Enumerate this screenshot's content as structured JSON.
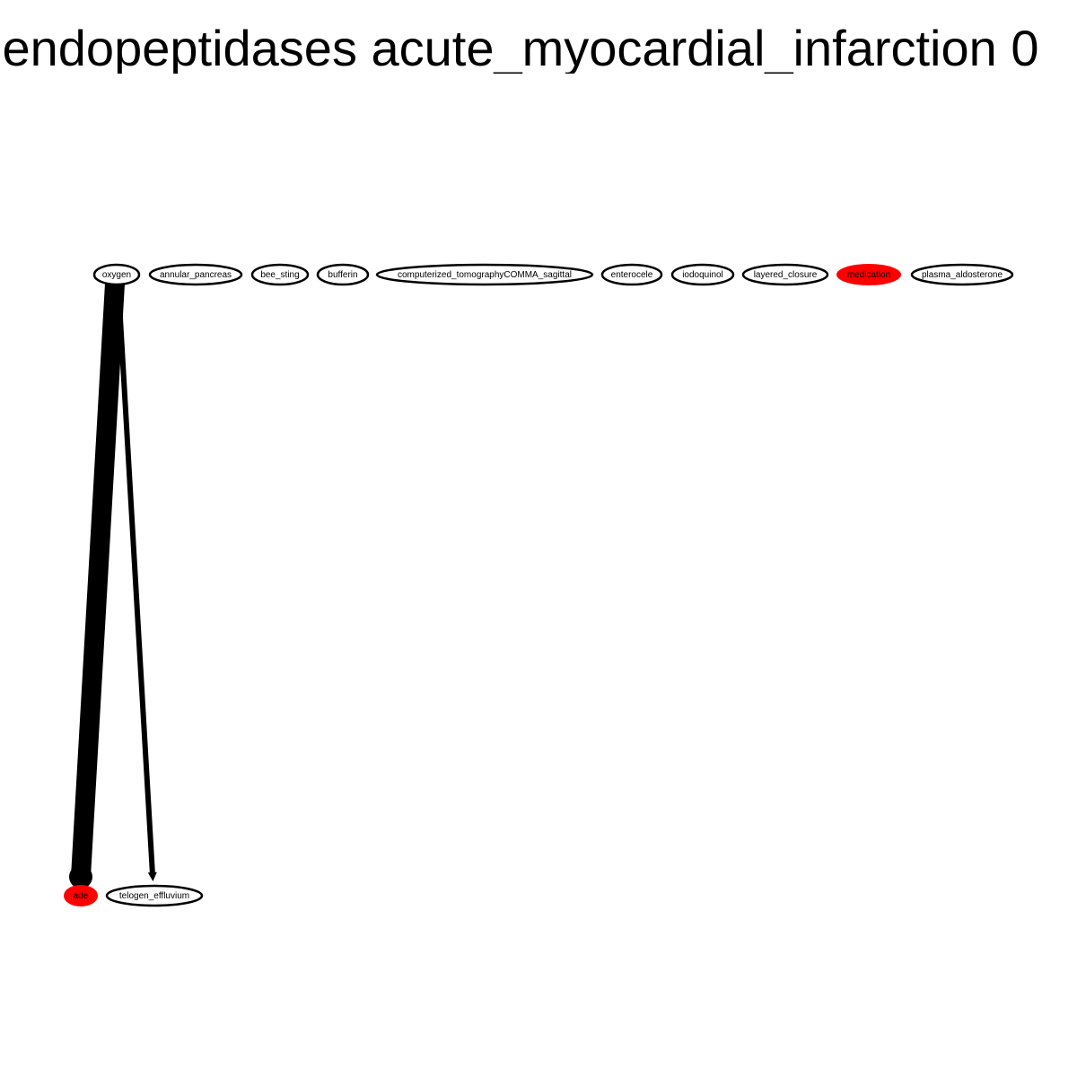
{
  "title": "endopeptidases acute_myocardial_infarction 0",
  "colors": {
    "highlight": "#ff0000",
    "edge": "#000000",
    "node_stroke": "#000000",
    "background": "#ffffff"
  },
  "nodes": [
    {
      "id": "oxygen",
      "label": "oxygen",
      "highlighted": false
    },
    {
      "id": "annular_pancreas",
      "label": "annular_pancreas",
      "highlighted": false
    },
    {
      "id": "bee_sting",
      "label": "bee_sting",
      "highlighted": false
    },
    {
      "id": "bufferin",
      "label": "bufferin",
      "highlighted": false
    },
    {
      "id": "computerized_tomographyCOMMA_sagittal",
      "label": "computerized_tomographyCOMMA_sagittal",
      "highlighted": false
    },
    {
      "id": "enterocele",
      "label": "enterocele",
      "highlighted": false
    },
    {
      "id": "iodoquinol",
      "label": "iodoquinol",
      "highlighted": false
    },
    {
      "id": "layered_closure",
      "label": "layered_closure",
      "highlighted": false
    },
    {
      "id": "medication",
      "label": "medication",
      "highlighted": true
    },
    {
      "id": "plasma_aldosterone",
      "label": "plasma_aldosterone",
      "highlighted": false
    },
    {
      "id": "ade",
      "label": "ade",
      "highlighted": true
    },
    {
      "id": "telogen_effluvium",
      "label": "telogen_effluvium",
      "highlighted": false
    }
  ],
  "edges": [
    {
      "source": "oxygen",
      "target": "ade",
      "weight": "heavy"
    },
    {
      "source": "oxygen",
      "target": "telogen_effluvium",
      "weight": "light"
    }
  ]
}
